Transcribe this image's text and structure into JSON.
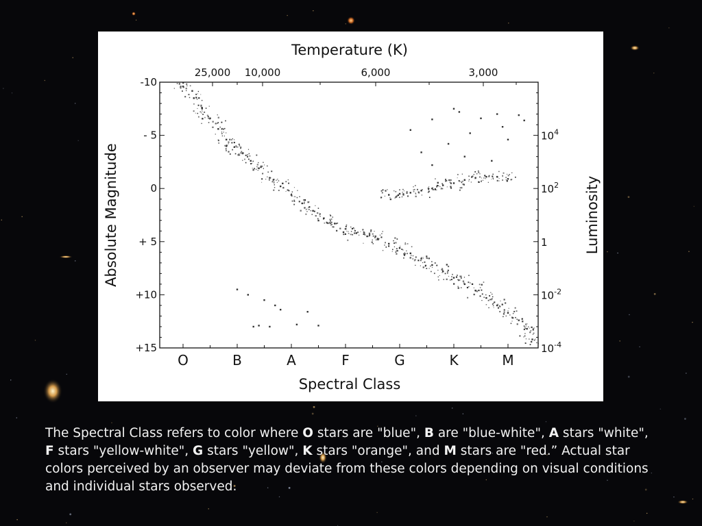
{
  "chart_data": {
    "type": "scatter",
    "title": "Temperature (K)",
    "xlabel": "Spectral Class",
    "ylabel": "Absolute Magnitude",
    "y2label": "Luminosity",
    "x_categories": [
      "O",
      "B",
      "A",
      "F",
      "G",
      "K",
      "M"
    ],
    "top_axis_ticks": [
      "25,000",
      "10,000",
      "6,000",
      "3,000"
    ],
    "y_ticks": [
      "-10",
      "- 5",
      "0",
      "+ 5",
      "+10",
      "+15"
    ],
    "y_tick_values": [
      -10,
      -5,
      0,
      5,
      10,
      15
    ],
    "ylim": [
      -10,
      15
    ],
    "y_inverted": true,
    "y2_ticks": [
      {
        "base": "10",
        "exp": "4",
        "mag": -5
      },
      {
        "base": "10",
        "exp": "2",
        "mag": 0
      },
      {
        "base": "1",
        "exp": "",
        "mag": 5
      },
      {
        "base": "10",
        "exp": "-2",
        "mag": 10
      },
      {
        "base": "10",
        "exp": "-4",
        "mag": 15
      }
    ],
    "series": [
      {
        "points": [
          [
            0.0,
            -9.6
          ],
          [
            0.2,
            -8.5
          ],
          [
            0.35,
            -7.6
          ],
          [
            0.5,
            -6.6
          ],
          [
            0.65,
            -5.6
          ],
          [
            0.8,
            -4.6
          ],
          [
            0.95,
            -3.9
          ],
          [
            1.1,
            -3.3
          ],
          [
            1.25,
            -2.6
          ],
          [
            1.4,
            -1.9
          ],
          [
            1.6,
            -1.0
          ],
          [
            1.8,
            -0.2
          ],
          [
            2.0,
            0.6
          ],
          [
            2.2,
            1.4
          ],
          [
            2.4,
            2.1
          ],
          [
            2.6,
            2.8
          ],
          [
            2.8,
            3.3
          ],
          [
            3.0,
            3.8
          ],
          [
            3.2,
            4.2
          ],
          [
            3.4,
            4.5
          ],
          [
            3.6,
            4.8
          ],
          [
            3.8,
            5.2
          ],
          [
            4.0,
            5.6
          ],
          [
            4.2,
            6.1
          ],
          [
            4.4,
            6.6
          ],
          [
            4.6,
            7.2
          ],
          [
            4.8,
            7.8
          ],
          [
            5.0,
            8.4
          ],
          [
            5.2,
            9.0
          ],
          [
            5.4,
            9.6
          ],
          [
            5.6,
            10.3
          ],
          [
            5.8,
            11.0
          ],
          [
            6.0,
            11.7
          ],
          [
            6.2,
            12.4
          ],
          [
            6.35,
            13.2
          ],
          [
            6.45,
            14.2
          ]
        ]
      },
      {
        "points": [
          [
            3.8,
            0.6
          ],
          [
            4.0,
            0.5
          ],
          [
            4.2,
            0.4
          ],
          [
            4.4,
            0.2
          ],
          [
            4.6,
            0.0
          ],
          [
            4.8,
            -0.3
          ],
          [
            5.0,
            -0.5
          ],
          [
            5.2,
            -0.8
          ],
          [
            5.4,
            -1.0
          ],
          [
            5.6,
            -1.1
          ],
          [
            5.8,
            -1.1
          ],
          [
            6.0,
            -0.9
          ]
        ]
      },
      {
        "points": [
          [
            4.2,
            -5.5
          ],
          [
            4.6,
            -6.5
          ],
          [
            4.9,
            -4.2
          ],
          [
            5.1,
            -7.2
          ],
          [
            5.3,
            -5.2
          ],
          [
            5.5,
            -6.6
          ],
          [
            5.8,
            -7.0
          ],
          [
            6.0,
            -4.6
          ],
          [
            6.2,
            -6.9
          ],
          [
            5.2,
            -3.0
          ],
          [
            4.6,
            -2.2
          ],
          [
            5.7,
            -2.6
          ],
          [
            6.3,
            -6.4
          ],
          [
            4.4,
            -3.4
          ],
          [
            5.9,
            -5.8
          ],
          [
            5.0,
            -7.5
          ]
        ]
      },
      {
        "points": [
          [
            1.2,
            10.0
          ],
          [
            1.5,
            10.5
          ],
          [
            1.8,
            11.4
          ],
          [
            2.1,
            12.8
          ],
          [
            1.4,
            12.9
          ],
          [
            1.3,
            13.0
          ],
          [
            1.6,
            13.0
          ],
          [
            2.5,
            12.9
          ],
          [
            1.7,
            11.0
          ],
          [
            2.3,
            11.6
          ],
          [
            1.0,
            9.5
          ]
        ]
      }
    ]
  },
  "caption": {
    "p1": "The Spectral Class refers to color where ",
    "b1": "O",
    "p2": " stars are \"blue\", ",
    "b2": "B",
    "p3": " are \"blue-white\", ",
    "b3": "A",
    "p4": " stars \"white\", ",
    "b4": "F",
    "p5": " stars \"yellow-white\", ",
    "b5": "G",
    "p6": " stars \"yellow\", ",
    "b6": "K",
    "p7": " stars \"orange\", and ",
    "b7": "M",
    "p8": " stars are \"red.” Actual star colors perceived by an observer may deviate from these colors depending on visual conditions and individual stars observed."
  }
}
